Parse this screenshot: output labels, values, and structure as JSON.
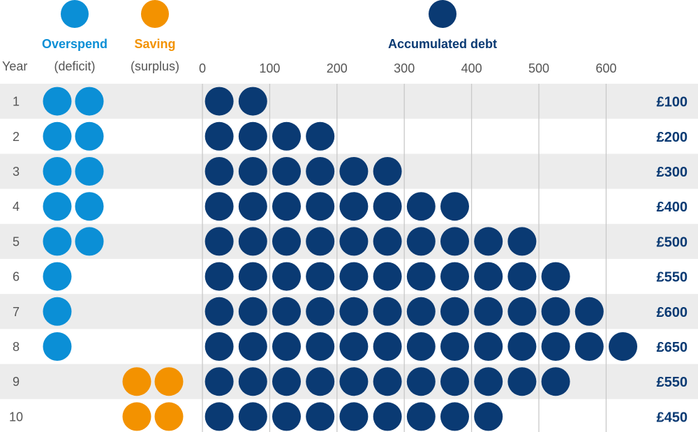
{
  "chart_data": {
    "type": "pictogram-table",
    "legend": {
      "overspend": {
        "title": "Overspend",
        "subtitle": "(deficit)",
        "color": "#0b8fd6"
      },
      "saving": {
        "title": "Saving",
        "subtitle": "(surplus)",
        "color": "#f39200"
      },
      "debt": {
        "title": "Accumulated debt",
        "color": "#0a3a73"
      }
    },
    "row_header": "Year",
    "x_axis": {
      "ticks": [
        "0",
        "100",
        "200",
        "300",
        "400",
        "500",
        "600"
      ],
      "range": [
        0,
        650
      ],
      "unit_per_dot": 50
    },
    "rows": [
      {
        "year": "1",
        "overspend_dots": 2,
        "saving_dots": 0,
        "debt": 100,
        "debt_label": "£100"
      },
      {
        "year": "2",
        "overspend_dots": 2,
        "saving_dots": 0,
        "debt": 200,
        "debt_label": "£200"
      },
      {
        "year": "3",
        "overspend_dots": 2,
        "saving_dots": 0,
        "debt": 300,
        "debt_label": "£300"
      },
      {
        "year": "4",
        "overspend_dots": 2,
        "saving_dots": 0,
        "debt": 400,
        "debt_label": "£400"
      },
      {
        "year": "5",
        "overspend_dots": 2,
        "saving_dots": 0,
        "debt": 500,
        "debt_label": "£500"
      },
      {
        "year": "6",
        "overspend_dots": 1,
        "saving_dots": 0,
        "debt": 550,
        "debt_label": "£550"
      },
      {
        "year": "7",
        "overspend_dots": 1,
        "saving_dots": 0,
        "debt": 600,
        "debt_label": "£600"
      },
      {
        "year": "8",
        "overspend_dots": 1,
        "saving_dots": 0,
        "debt": 650,
        "debt_label": "£650"
      },
      {
        "year": "9",
        "overspend_dots": 0,
        "saving_dots": 2,
        "debt": 550,
        "debt_label": "£550"
      },
      {
        "year": "10",
        "overspend_dots": 0,
        "saving_dots": 2,
        "debt": 450,
        "debt_label": "£450"
      }
    ],
    "colors": {
      "row_band": "#ececec",
      "grid": "#c9c9c9",
      "text": "#555555",
      "value_text": "#0a3a73"
    }
  }
}
